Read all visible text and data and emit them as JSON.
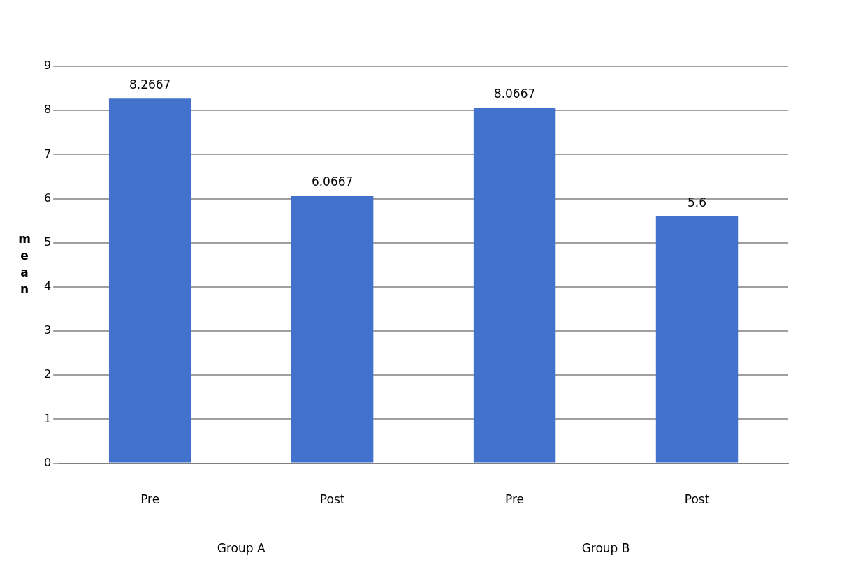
{
  "chart_data": {
    "type": "bar",
    "ylabel": "mean",
    "categories": [
      "Pre",
      "Post",
      "Pre",
      "Post"
    ],
    "values": [
      8.2667,
      6.0667,
      8.0667,
      5.6
    ],
    "color": "#4272cc",
    "ylim": [
      0,
      9
    ],
    "yticks": [
      0,
      1,
      2,
      3,
      4,
      5,
      6,
      7,
      8,
      9
    ],
    "grid": "y",
    "data_labels": true,
    "legend": false,
    "annotations": [
      "Group A",
      "Group B"
    ]
  }
}
